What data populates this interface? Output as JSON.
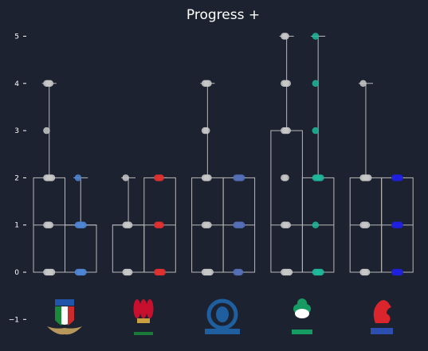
{
  "chart_data": {
    "type": "box",
    "title": "Progress +",
    "xlabel": "",
    "ylabel": "",
    "ylim": [
      -1.25,
      5.3
    ],
    "yticks": [
      -1,
      0,
      1,
      2,
      3,
      4,
      5
    ],
    "grid": false,
    "team_logos": [
      "Italy",
      "Wales",
      "Scotland",
      "Ireland",
      "France"
    ],
    "groups": [
      {
        "team": "Italy",
        "accent_color": "#2255aa",
        "series": [
          {
            "name": "",
            "color": "#c8c8c8",
            "q1": 0,
            "median": 1,
            "q3": 2,
            "min": 0,
            "max": 4,
            "points": [
              0,
              0,
              0,
              0,
              1,
              1,
              1,
              2,
              2,
              2,
              2,
              3,
              4,
              4,
              4
            ]
          },
          {
            "name": "",
            "color": "#4f86d6",
            "q1": 0,
            "median": 1,
            "q3": 1,
            "min": 0,
            "max": 2,
            "points": [
              0,
              0,
              0,
              0,
              1,
              1,
              1,
              1,
              2
            ]
          }
        ]
      },
      {
        "team": "Wales",
        "accent_color": "#c8102e",
        "series": [
          {
            "name": "",
            "color": "#c8c8c8",
            "q1": 0,
            "median": 1,
            "q3": 1,
            "min": 0,
            "max": 2,
            "points": [
              0,
              0,
              0,
              1,
              1,
              1,
              2
            ]
          },
          {
            "name": "",
            "color": "#e03030",
            "q1": 0,
            "median": 1,
            "q3": 2,
            "min": 0,
            "max": 2,
            "points": [
              0,
              0,
              0,
              0,
              1,
              1,
              1,
              2,
              2,
              2
            ]
          }
        ]
      },
      {
        "team": "Scotland",
        "accent_color": "#1f4e8c",
        "series": [
          {
            "name": "",
            "color": "#c8c8c8",
            "q1": 0,
            "median": 1,
            "q3": 2,
            "min": 0,
            "max": 4,
            "points": [
              0,
              0,
              0,
              0,
              1,
              1,
              1,
              2,
              2,
              2,
              3,
              3,
              4,
              4,
              4
            ]
          },
          {
            "name": "",
            "color": "#5570b8",
            "q1": 0,
            "median": 1,
            "q3": 2,
            "min": 0,
            "max": 2,
            "points": [
              0,
              0,
              0,
              1,
              1,
              1,
              1,
              2,
              2,
              2,
              2
            ]
          }
        ]
      },
      {
        "team": "Ireland",
        "accent_color": "#169b62",
        "series": [
          {
            "name": "",
            "color": "#c8c8c8",
            "q1": 0,
            "median": 1,
            "q3": 3,
            "min": 0,
            "max": 5,
            "points": [
              0,
              0,
              0,
              0,
              1,
              1,
              1,
              2,
              2,
              3,
              3,
              3,
              4,
              4,
              4,
              5,
              5
            ]
          },
          {
            "name": "",
            "color": "#1fb89a",
            "q1": 0,
            "median": 1,
            "q3": 2,
            "min": 0,
            "max": 5,
            "points": [
              0,
              0,
              0,
              0,
              1,
              2,
              2,
              2,
              2,
              3,
              4,
              5
            ]
          }
        ]
      },
      {
        "team": "France",
        "accent_color": "#0033cc",
        "series": [
          {
            "name": "",
            "color": "#c8c8c8",
            "q1": 0,
            "median": 1,
            "q3": 2,
            "min": 0,
            "max": 4,
            "points": [
              0,
              0,
              0,
              1,
              1,
              1,
              2,
              2,
              2,
              2,
              4
            ]
          },
          {
            "name": "",
            "color": "#2020e0",
            "q1": 0,
            "median": 1,
            "q3": 2,
            "min": 0,
            "max": 2,
            "points": [
              0,
              0,
              0,
              0,
              1,
              1,
              1,
              1,
              2,
              2,
              2,
              2
            ]
          }
        ]
      }
    ]
  }
}
